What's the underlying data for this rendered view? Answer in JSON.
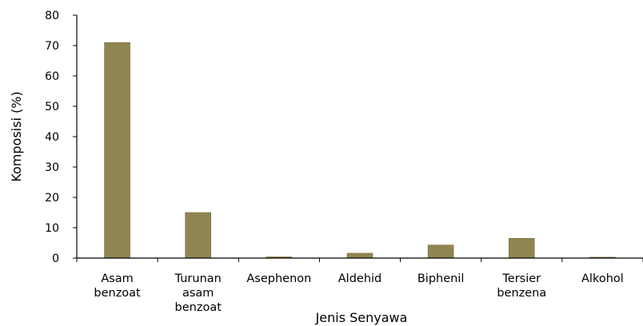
{
  "chart_data": {
    "type": "bar",
    "title": "",
    "xlabel": "Jenis Senyawa",
    "ylabel": "Komposisi (%)",
    "ylim": [
      0,
      80
    ],
    "yticks": [
      0,
      10,
      20,
      30,
      40,
      50,
      60,
      70,
      80
    ],
    "grid": false,
    "legend": "none",
    "categories": [
      [
        "Asam",
        "benzoat"
      ],
      [
        "Turunan",
        "asam",
        "benzoat"
      ],
      [
        "Asephenon"
      ],
      [
        "Aldehid"
      ],
      [
        "Biphenil"
      ],
      [
        "Tersier",
        "benzena"
      ],
      [
        "Alkohol"
      ]
    ],
    "values": [
      71,
      15,
      0.4,
      1.6,
      4.3,
      6.5,
      0.3
    ],
    "colors": {
      "bar": "#8f8552",
      "bar_stroke": "#7a7040",
      "axis": "#000000"
    }
  }
}
